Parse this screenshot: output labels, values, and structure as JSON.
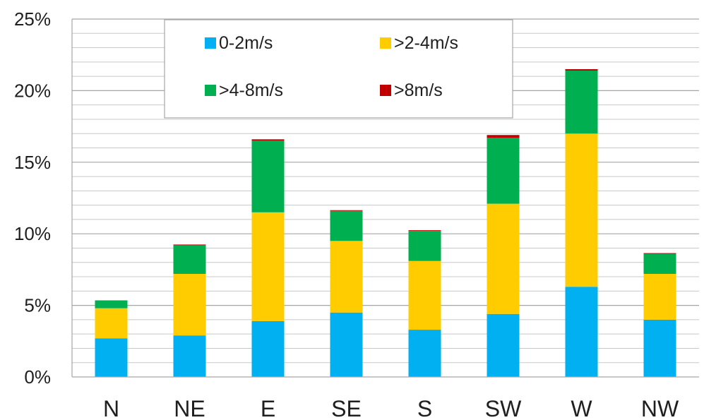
{
  "chart_data": {
    "type": "bar",
    "stacked": true,
    "categories": [
      "N",
      "NE",
      "E",
      "SE",
      "S",
      "SW",
      "W",
      "NW"
    ],
    "series": [
      {
        "name": "0-2m/s",
        "color": "#00B0F0",
        "values": [
          2.7,
          2.9,
          3.9,
          4.5,
          3.3,
          4.4,
          6.3,
          4.0
        ]
      },
      {
        "name": ">2-4m/s",
        "color": "#FFCC00",
        "values": [
          2.1,
          4.3,
          7.6,
          5.0,
          4.8,
          7.7,
          10.7,
          3.2
        ]
      },
      {
        "name": ">4-8m/s",
        "color": "#00B050",
        "values": [
          0.55,
          2.0,
          5.0,
          2.1,
          2.1,
          4.6,
          4.4,
          1.4
        ]
      },
      {
        "name": ">8m/s",
        "color": "#C00000",
        "values": [
          0.0,
          0.05,
          0.1,
          0.05,
          0.05,
          0.2,
          0.1,
          0.05
        ]
      }
    ],
    "ylim": [
      0,
      25
    ],
    "y_ticks": [
      "0%",
      "5%",
      "10%",
      "15%",
      "20%",
      "25%"
    ],
    "grid": true,
    "legend_position": "top-left"
  }
}
